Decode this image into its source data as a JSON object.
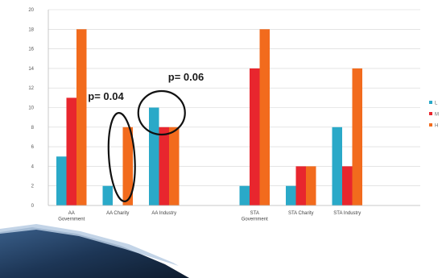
{
  "chart_data": {
    "type": "bar",
    "categories": [
      [
        "AA",
        "Government"
      ],
      [
        "AA Charity"
      ],
      [
        "AA Industry"
      ],
      [
        "STA",
        "Government"
      ],
      [
        "STA Charity"
      ],
      [
        "STA Industry"
      ]
    ],
    "groups": [
      [
        0,
        1,
        2
      ],
      [
        3,
        4,
        5
      ]
    ],
    "series": [
      {
        "name": "L",
        "color": "#2aa9c8",
        "values": [
          5,
          2,
          10,
          2,
          2,
          8
        ]
      },
      {
        "name": "M",
        "color": "#e8262e",
        "values": [
          11,
          0,
          8,
          14,
          4,
          4
        ]
      },
      {
        "name": "H",
        "color": "#f26b1d",
        "values": [
          18,
          8,
          8,
          18,
          4,
          14
        ]
      }
    ],
    "ylim": [
      0,
      20
    ],
    "yticks": [
      0,
      2,
      4,
      6,
      8,
      10,
      12,
      14,
      16,
      18,
      20
    ],
    "grid": true,
    "legend_position": "right",
    "annotations": [
      {
        "text": "p= 0.04",
        "category_index": 1,
        "shape": "ellipse"
      },
      {
        "text": "p= 0.06",
        "category_index": 2,
        "shape": "circle"
      }
    ]
  }
}
